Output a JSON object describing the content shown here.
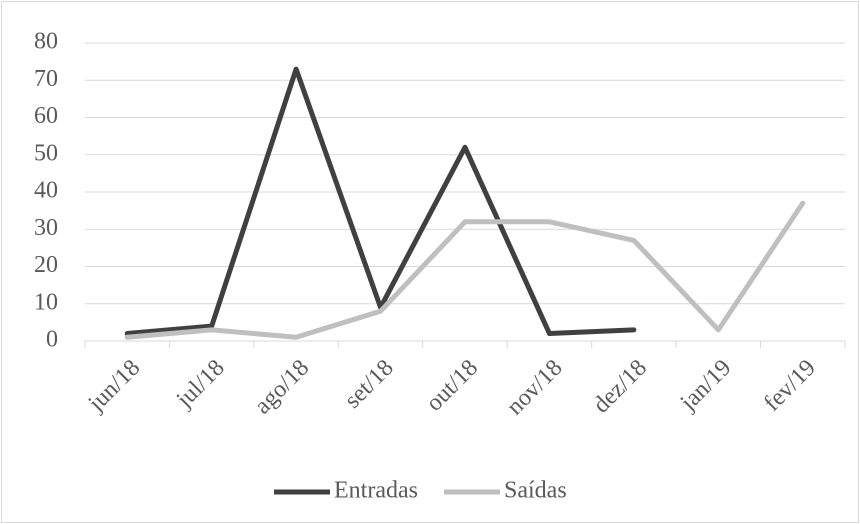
{
  "chart_data": {
    "type": "line",
    "categories": [
      "jun/18",
      "jul/18",
      "ago/18",
      "set/18",
      "out/18",
      "nov/18",
      "dez/18",
      "jan/19",
      "fev/19"
    ],
    "series": [
      {
        "name": "Entradas",
        "color": "#404040",
        "values": [
          2,
          4,
          73,
          9,
          52,
          2,
          3,
          null,
          null
        ]
      },
      {
        "name": "Saídas",
        "color": "#bfbfbf",
        "values": [
          1,
          3,
          1,
          8,
          32,
          32,
          27,
          3,
          37
        ]
      }
    ],
    "ylim": [
      0,
      80
    ],
    "yticks": [
      0,
      10,
      20,
      30,
      40,
      50,
      60,
      70,
      80
    ],
    "grid": true,
    "legend": "bottom"
  }
}
